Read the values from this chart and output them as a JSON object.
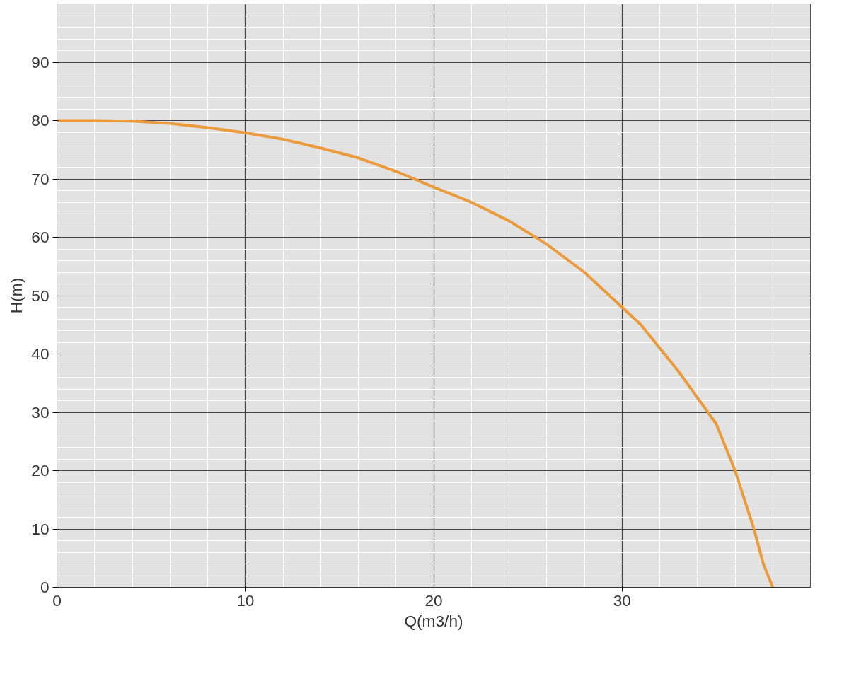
{
  "chart_data": {
    "type": "line",
    "xlabel": "Q(m3/h)",
    "ylabel": "H(m)",
    "x": [
      0,
      2,
      4,
      6,
      8,
      10,
      12,
      14,
      16,
      18,
      20,
      22,
      24,
      26,
      28,
      30,
      31,
      32,
      33,
      34,
      35,
      36,
      37,
      37.5,
      38
    ],
    "series": [
      {
        "color": "#eb9a3c",
        "values": [
          80,
          80,
          79.9,
          79.5,
          78.8,
          77.9,
          76.8,
          75.3,
          73.6,
          71.3,
          68.6,
          66,
          62.8,
          58.8,
          54,
          48,
          45,
          41,
          37,
          32.5,
          28,
          20,
          10,
          4,
          0
        ]
      }
    ],
    "xlim": [
      0,
      40
    ],
    "ylim": [
      0,
      100
    ],
    "xticks": [
      0,
      10,
      20,
      30
    ],
    "yticks": [
      0,
      10,
      20,
      30,
      40,
      50,
      60,
      70,
      80,
      90
    ],
    "grid": true,
    "marker": "none",
    "line_style": "solid"
  }
}
